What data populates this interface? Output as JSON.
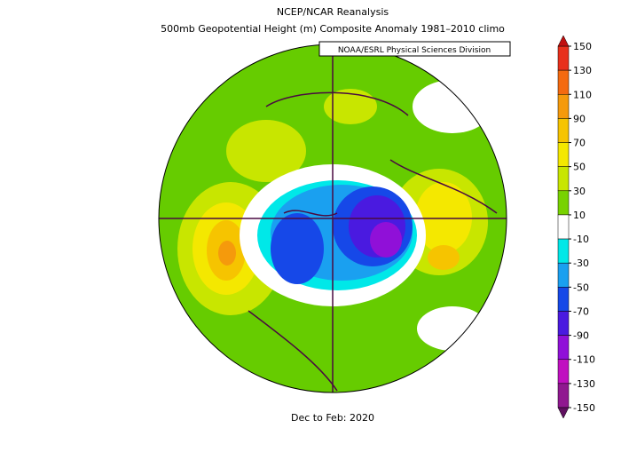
{
  "header": {
    "title": "NCEP/NCAR Reanalysis",
    "subtitle": "500mb Geopotential Height (m) Composite Anomaly 1981–2010 climo"
  },
  "credit": "NOAA/ESRL Physical Sciences Division",
  "period": "Dec to Feb: 2020",
  "colorbar": {
    "lim": [
      -150,
      150
    ],
    "ticks": [
      150,
      130,
      110,
      90,
      70,
      50,
      30,
      10,
      -10,
      -30,
      -50,
      -70,
      -90,
      -110,
      -130,
      -150
    ],
    "colors": [
      "#e8301c",
      "#f46a10",
      "#f59a0c",
      "#f6c400",
      "#f4e800",
      "#c8e600",
      "#78d200",
      "#ffffff",
      "#00e8e8",
      "#1aa0f0",
      "#1648e8",
      "#4a1ae0",
      "#9010d8",
      "#c010c0",
      "#901890"
    ],
    "over_color": "#c01010",
    "under_color": "#601060"
  }
}
